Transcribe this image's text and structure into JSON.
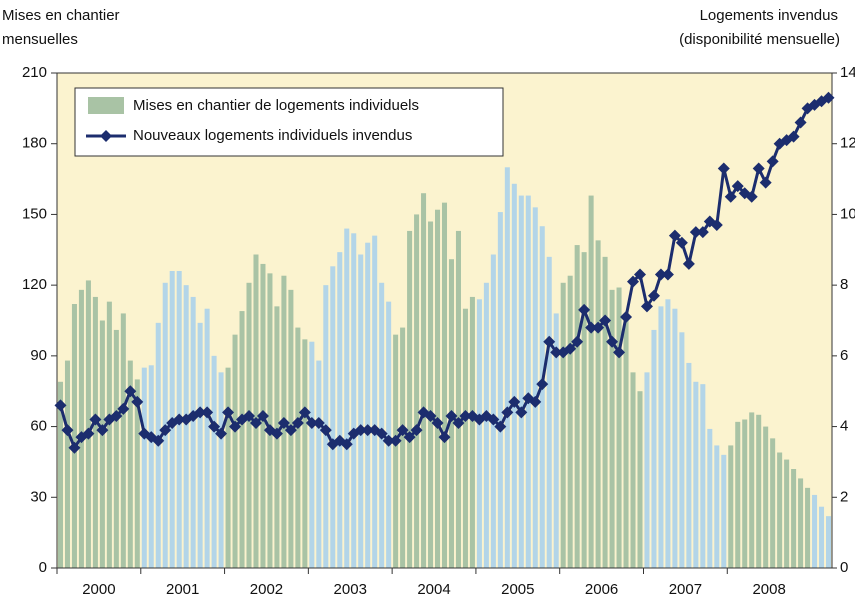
{
  "chart_data": {
    "type": "bar_line",
    "ylabel": [
      "Mises en chantier",
      "mensuelles"
    ],
    "y2label": [
      "Logements invendus",
      "(disponibilité mensuelle)"
    ],
    "year_labels": [
      "2000",
      "2001",
      "2002",
      "2003",
      "2004",
      "2005",
      "2006",
      "2007",
      "2008"
    ],
    "ylim": [
      0,
      210
    ],
    "yticks": [
      0,
      30,
      60,
      90,
      120,
      150,
      180,
      210
    ],
    "y2lim": [
      0,
      14
    ],
    "y2ticks": [
      0,
      2,
      4,
      6,
      8,
      10,
      12,
      14
    ],
    "background": "#fbf3cf",
    "series": [
      {
        "name": "Mises en chantier de logements individuels",
        "type": "bar",
        "colors": [
          "#a9c3a5",
          "#b3d5e8"
        ],
        "values": [
          79,
          88,
          112,
          118,
          122,
          115,
          105,
          113,
          101,
          108,
          88,
          80,
          85,
          86,
          104,
          121,
          126,
          126,
          120,
          115,
          104,
          110,
          90,
          83,
          85,
          99,
          109,
          121,
          133,
          129,
          125,
          111,
          124,
          118,
          102,
          97,
          96,
          88,
          120,
          128,
          134,
          144,
          142,
          133,
          138,
          141,
          121,
          113,
          99,
          102,
          143,
          150,
          159,
          147,
          152,
          155,
          131,
          143,
          110,
          115,
          114,
          121,
          133,
          151,
          170,
          163,
          158,
          158,
          153,
          145,
          132,
          108,
          121,
          124,
          137,
          134,
          158,
          139,
          132,
          118,
          119,
          108,
          83,
          75,
          83,
          101,
          111,
          114,
          110,
          100,
          87,
          79,
          78,
          59,
          52,
          48,
          52,
          62,
          63,
          66,
          65,
          60,
          55,
          49,
          46,
          42,
          38,
          34,
          31,
          26,
          22
        ]
      },
      {
        "name": "Nouveaux logements individuels invendus",
        "type": "line",
        "axis": "y2",
        "color": "#1c2d6e",
        "values": [
          4.6,
          3.9,
          3.4,
          3.7,
          3.8,
          4.2,
          3.9,
          4.2,
          4.3,
          4.5,
          5.0,
          4.7,
          3.8,
          3.7,
          3.6,
          3.9,
          4.1,
          4.2,
          4.2,
          4.3,
          4.4,
          4.4,
          4.0,
          3.8,
          4.4,
          4.0,
          4.2,
          4.3,
          4.1,
          4.3,
          3.9,
          3.8,
          4.1,
          3.9,
          4.1,
          4.4,
          4.1,
          4.1,
          3.9,
          3.5,
          3.6,
          3.5,
          3.8,
          3.9,
          3.9,
          3.9,
          3.8,
          3.6,
          3.6,
          3.9,
          3.7,
          3.9,
          4.4,
          4.3,
          4.1,
          3.7,
          4.3,
          4.1,
          4.3,
          4.3,
          4.2,
          4.3,
          4.2,
          4.0,
          4.4,
          4.7,
          4.4,
          4.8,
          4.7,
          5.2,
          6.4,
          6.1,
          6.1,
          6.2,
          6.4,
          7.3,
          6.8,
          6.8,
          7.0,
          6.4,
          6.1,
          7.1,
          8.1,
          8.3,
          7.4,
          7.7,
          8.3,
          8.3,
          9.4,
          9.2,
          8.6,
          9.5,
          9.5,
          9.8,
          9.7,
          11.3,
          10.5,
          10.8,
          10.6,
          10.5,
          11.3,
          10.9,
          11.5,
          12.0,
          12.1,
          12.2,
          12.6,
          13.0,
          13.1,
          13.2,
          13.3
        ]
      }
    ],
    "legend": "upper left"
  }
}
